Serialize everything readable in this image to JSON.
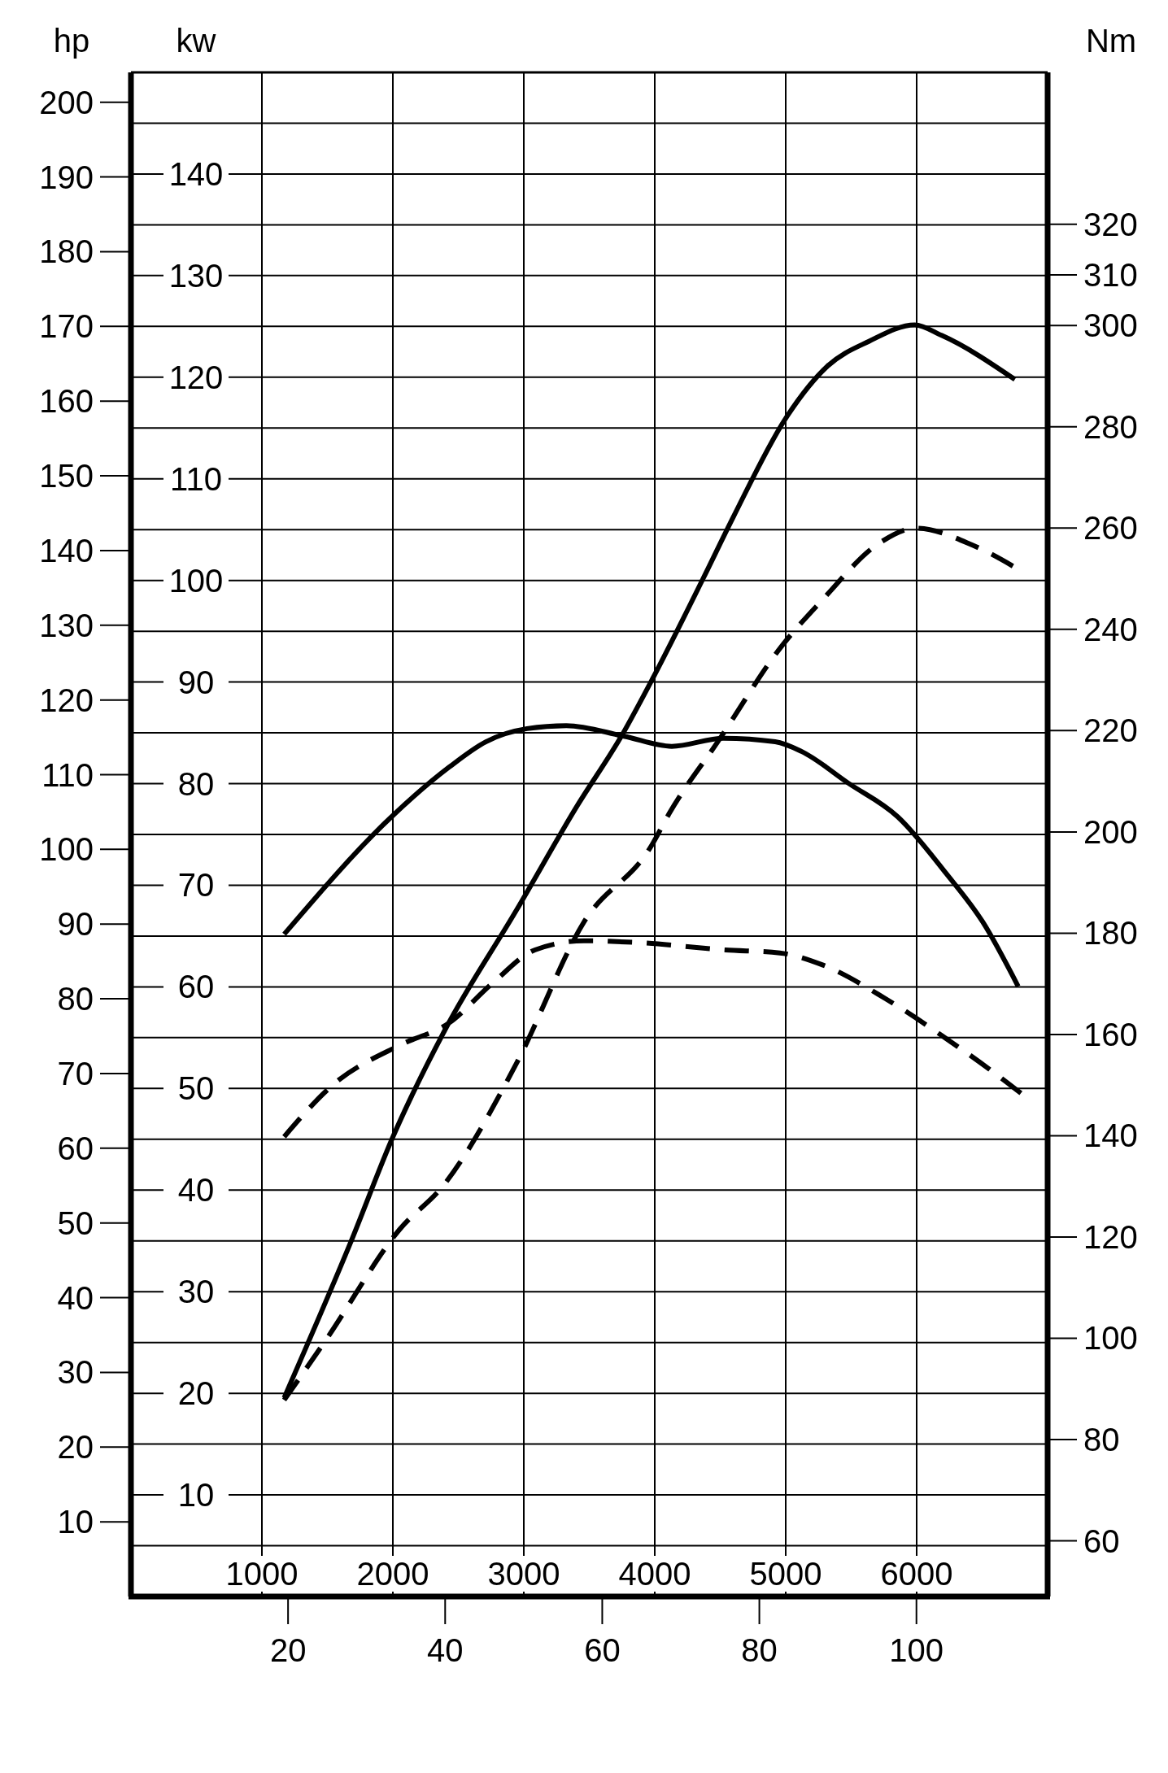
{
  "chart_data": {
    "type": "line",
    "ylabel": "hp",
    "y2label": "Nm",
    "y3label": "kw",
    "xlim": [
      0,
      7000
    ],
    "xticks": [
      1000,
      2000,
      3000,
      4000,
      5000,
      6000
    ],
    "x2lim": [
      0,
      116.7
    ],
    "x2ticks": [
      20,
      40,
      60,
      80,
      100
    ],
    "ylim": [
      0,
      204
    ],
    "yticks": [
      10,
      20,
      30,
      40,
      50,
      60,
      70,
      80,
      90,
      100,
      110,
      120,
      130,
      140,
      150,
      160,
      170,
      180,
      190,
      200
    ],
    "y2lim": [
      49,
      350
    ],
    "y2ticks": [
      60,
      80,
      100,
      120,
      140,
      160,
      180,
      200,
      220,
      240,
      260,
      280,
      300,
      310,
      320
    ],
    "y3lim": [
      0,
      150
    ],
    "y3ticks": [
      {
        "value": 5,
        "label": null
      },
      10,
      {
        "value": 15,
        "label": null
      },
      20,
      {
        "value": 25,
        "label": null
      },
      30,
      {
        "value": 35,
        "label": null
      },
      40,
      {
        "value": 45,
        "label": null
      },
      50,
      {
        "value": 55,
        "label": null
      },
      60,
      {
        "value": 65,
        "label": null
      },
      70,
      {
        "value": 75,
        "label": null
      },
      80,
      {
        "value": 85,
        "label": null
      },
      90,
      {
        "value": 95,
        "label": null
      },
      100,
      {
        "value": 105,
        "label": null
      },
      110,
      {
        "value": 115,
        "label": null
      },
      120,
      {
        "value": 125,
        "label": null
      },
      130,
      {
        "value": 135,
        "label": null
      },
      140,
      {
        "value": 145,
        "label": null
      }
    ],
    "grid": true,
    "series": [
      {
        "color": "#000000",
        "line_style": "solid",
        "axis": "y",
        "x": [
          1170,
          1680,
          2000,
          2400,
          2945,
          3410,
          3750,
          3985,
          4365,
          4600,
          5000,
          5320,
          5635,
          5985,
          6190,
          6750
        ],
        "values": [
          26.6,
          47.5,
          61.5,
          75.9,
          91.9,
          105.9,
          115.3,
          122.9,
          136.1,
          144.5,
          157.7,
          164.7,
          168,
          170.2,
          168.8,
          162.9
        ]
      },
      {
        "color": "#000000",
        "line_style": "dashed",
        "axis": "y",
        "x": [
          1170,
          1495,
          2055,
          2385,
          2945,
          3460,
          3975,
          4110,
          4485,
          4960,
          5280,
          5715,
          5995,
          6430,
          6805
        ],
        "values": [
          26.3,
          34.5,
          49.2,
          55,
          71.4,
          90.3,
          100.5,
          104.8,
          114.5,
          127,
          133.4,
          141,
          143,
          140.7,
          137.2
        ]
      },
      {
        "color": "#000000",
        "line_style": "solid",
        "axis": "y2",
        "x": [
          1170,
          1990,
          2430,
          2710,
          3025,
          3325,
          3765,
          4130,
          4525,
          4920,
          5120,
          5480,
          5855,
          6225,
          6505,
          6775
        ],
        "values": [
          179.8,
          203,
          212.8,
          217.8,
          220.4,
          221,
          218.9,
          216.9,
          218.5,
          217.8,
          215.9,
          209.6,
          203,
          191.8,
          182.2,
          169.5
        ]
      },
      {
        "color": "#000000",
        "line_style": "dashed",
        "axis": "y2",
        "x": [
          1170,
          1540,
          2055,
          2430,
          2760,
          3085,
          3460,
          3835,
          4540,
          4955,
          5285,
          5760,
          6225,
          6650,
          6855
        ],
        "values": [
          139.8,
          150,
          157.9,
          162.3,
          170.1,
          176.7,
          178.5,
          178.2,
          176.7,
          176.1,
          173.7,
          167.1,
          159.2,
          151.3,
          147.2
        ]
      }
    ]
  }
}
